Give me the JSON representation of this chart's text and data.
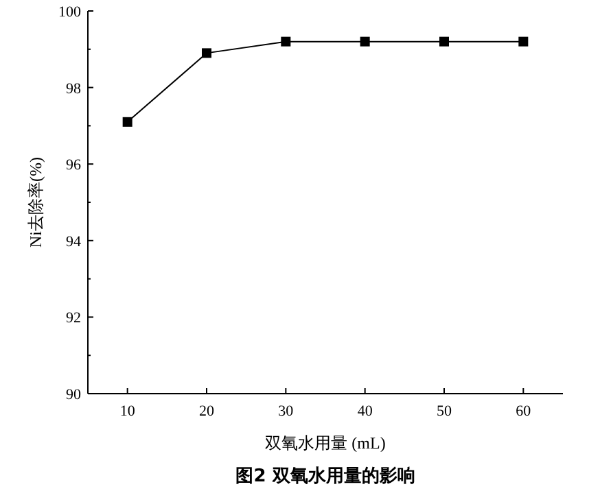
{
  "chart_data": {
    "type": "line",
    "title": "图2 双氧水用量的影响",
    "xlabel": "双氧水用量 (mL)",
    "ylabel": "Ni去除率(%)",
    "x": [
      10,
      20,
      30,
      40,
      50,
      60
    ],
    "series": [
      {
        "color": "#000000",
        "values": [
          97.1,
          98.9,
          99.2,
          99.2,
          99.2,
          99.2
        ]
      }
    ],
    "xlim": [
      5,
      65
    ],
    "xticks": [
      10,
      20,
      30,
      40,
      50,
      60
    ],
    "ylim": [
      90,
      100
    ],
    "yticks": [
      90,
      92,
      94,
      96,
      98,
      100
    ],
    "marker": "square",
    "line_style": "solid"
  }
}
